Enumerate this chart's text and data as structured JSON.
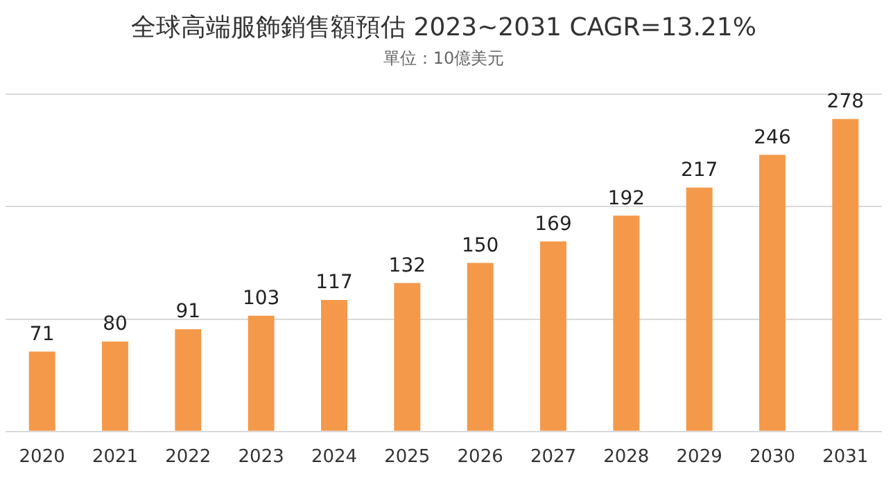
{
  "chart_data": {
    "type": "bar",
    "title": "全球高端服飾銷售額預估 2023~2031 CAGR=13.21%",
    "subtitle": "單位：10億美元",
    "categories": [
      "2020",
      "2021",
      "2022",
      "2023",
      "2024",
      "2025",
      "2026",
      "2027",
      "2028",
      "2029",
      "2030",
      "2031"
    ],
    "values": [
      71,
      80,
      91,
      103,
      117,
      132,
      150,
      169,
      192,
      217,
      246,
      278
    ],
    "color": "#f4994a",
    "ylim": [
      0,
      300
    ],
    "yticks": [
      {
        "value": 0,
        "label": null
      },
      {
        "value": 100,
        "label": null
      },
      {
        "value": 200,
        "label": null
      }
    ],
    "grid": "y",
    "tick_labels": "x",
    "data_labels": true,
    "legend": false
  }
}
